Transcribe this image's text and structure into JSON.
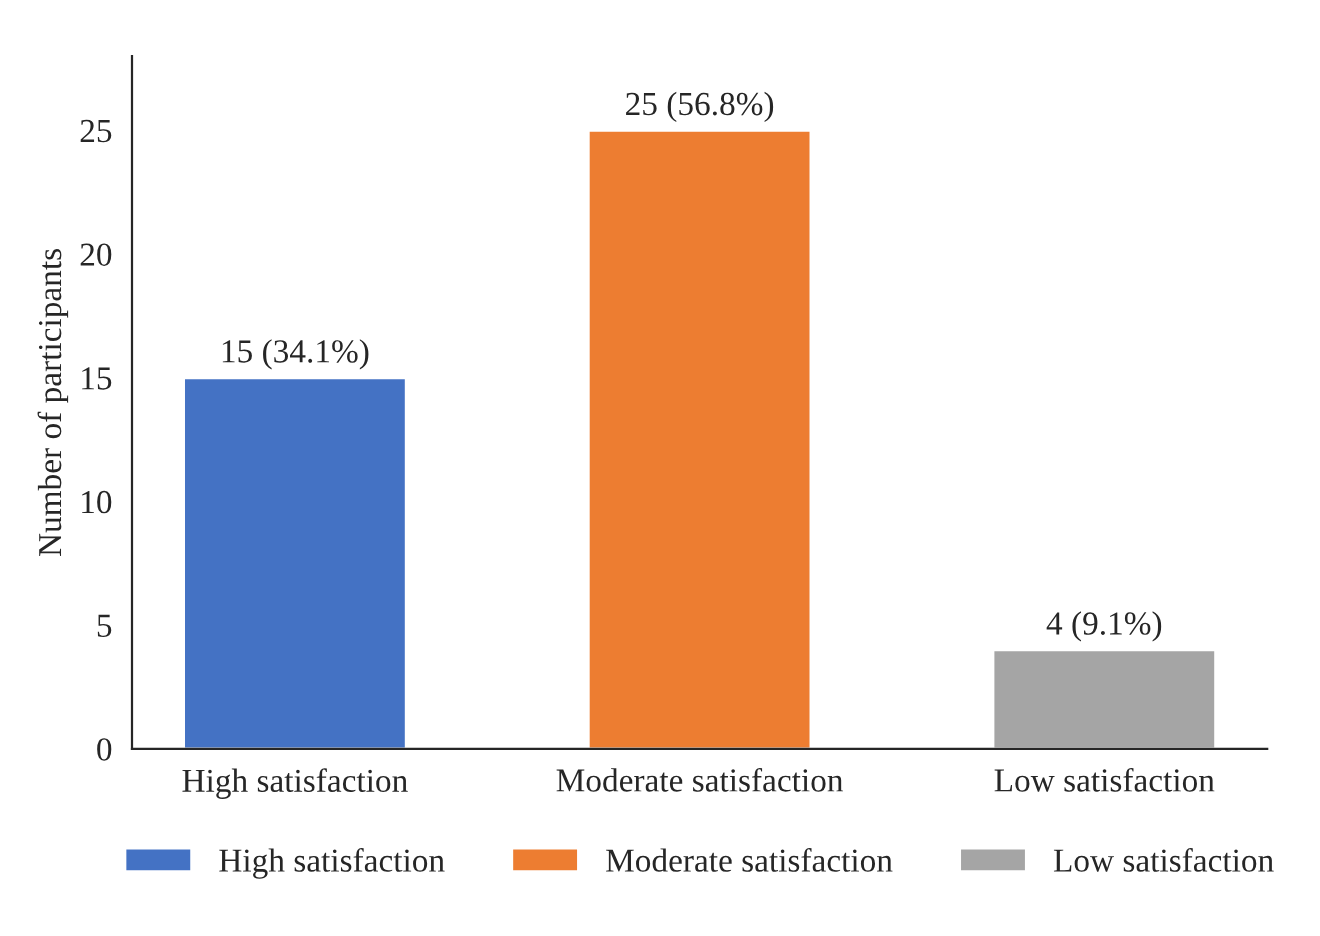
{
  "chart_data": {
    "type": "bar",
    "ylabel": "Number of participants",
    "categories": [
      "High satisfaction",
      "Moderate satisfaction",
      "Low satisfaction"
    ],
    "series": [
      {
        "name": "High satisfaction",
        "color": "#4472c4",
        "values": [
          15,
          null,
          null
        ],
        "value_labels": [
          "15 (34.1%)",
          null,
          null
        ]
      },
      {
        "name": "Moderate satisfaction",
        "color": "#ed7d31",
        "values": [
          null,
          25,
          null
        ],
        "value_labels": [
          null,
          "25 (56.8%)",
          null
        ]
      },
      {
        "name": "Low satisfaction",
        "color": "#a5a5a5",
        "values": [
          null,
          null,
          4
        ],
        "value_labels": [
          null,
          null,
          "4 (9.1%)"
        ]
      }
    ],
    "ylim": [
      0,
      28
    ],
    "yticks": [
      0,
      5,
      10,
      15,
      20,
      25
    ],
    "grid": false,
    "legend": "bottom"
  }
}
